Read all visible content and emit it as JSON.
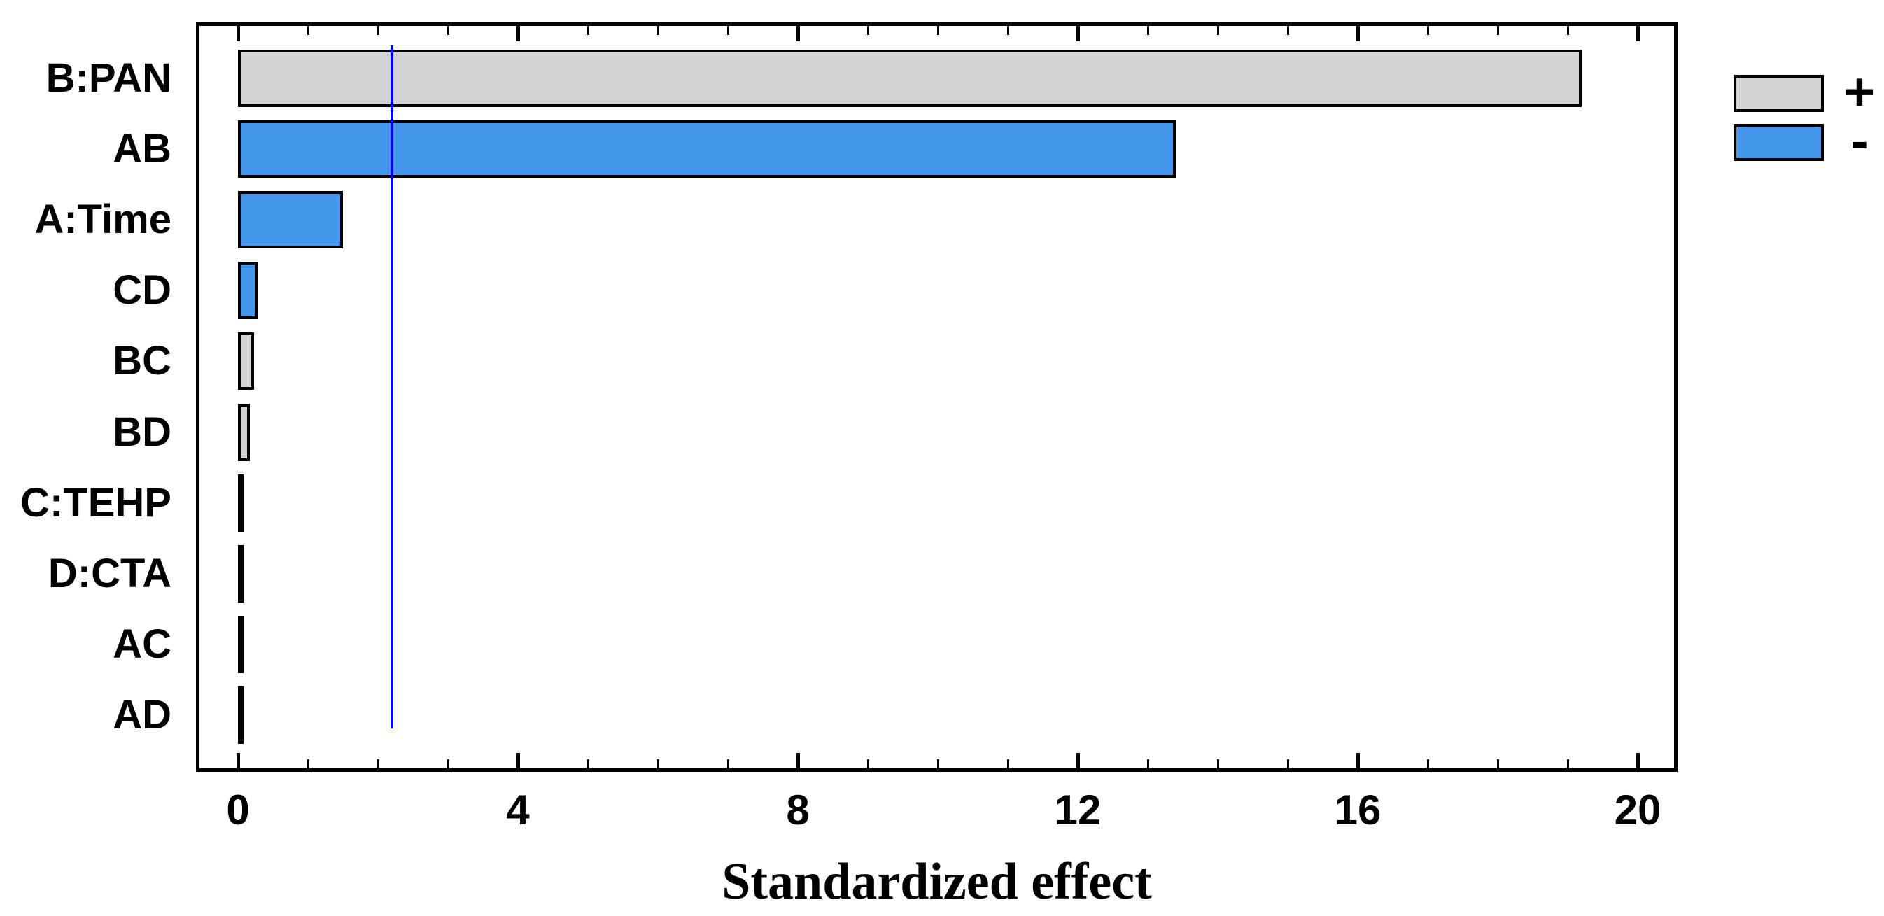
{
  "chart_data": {
    "type": "bar",
    "orientation": "horizontal",
    "xlabel": "Standardized effect",
    "xlim": [
      -0.6,
      20.6
    ],
    "x_major_ticks": [
      0,
      4,
      8,
      12,
      16,
      20
    ],
    "x_minor_tick_step": 1,
    "grid": false,
    "categories": [
      "B:PAN",
      "AB",
      "A:Time",
      "CD",
      "BC",
      "BD",
      "C:TEHP",
      "D:CTA",
      "AC",
      "AD"
    ],
    "values": [
      19.2,
      13.4,
      1.5,
      0.28,
      0.23,
      0.17,
      0.05,
      0.05,
      0.02,
      0.02
    ],
    "signs": [
      "+",
      "-",
      "-",
      "-",
      "+",
      "+",
      null,
      null,
      null,
      null
    ],
    "bar_colors": [
      "#D3D3D3",
      "#4296EC",
      "#4296EC",
      "#4296EC",
      "#D3D3D3",
      "#D3D3D3",
      "#000000",
      "#000000",
      "#000000",
      "#000000"
    ],
    "reference_line": {
      "value": 2.2,
      "color": "#0000FF"
    },
    "legend": {
      "position": "top-right",
      "entries": [
        {
          "label": "+",
          "color": "#D3D3D3"
        },
        {
          "label": "-",
          "color": "#4296EC"
        }
      ]
    },
    "colors": {
      "positive": "#D3D3D3",
      "negative": "#4296EC",
      "outline": "#000000",
      "reference": "#0000FF",
      "background": "#FFFFFF"
    }
  }
}
